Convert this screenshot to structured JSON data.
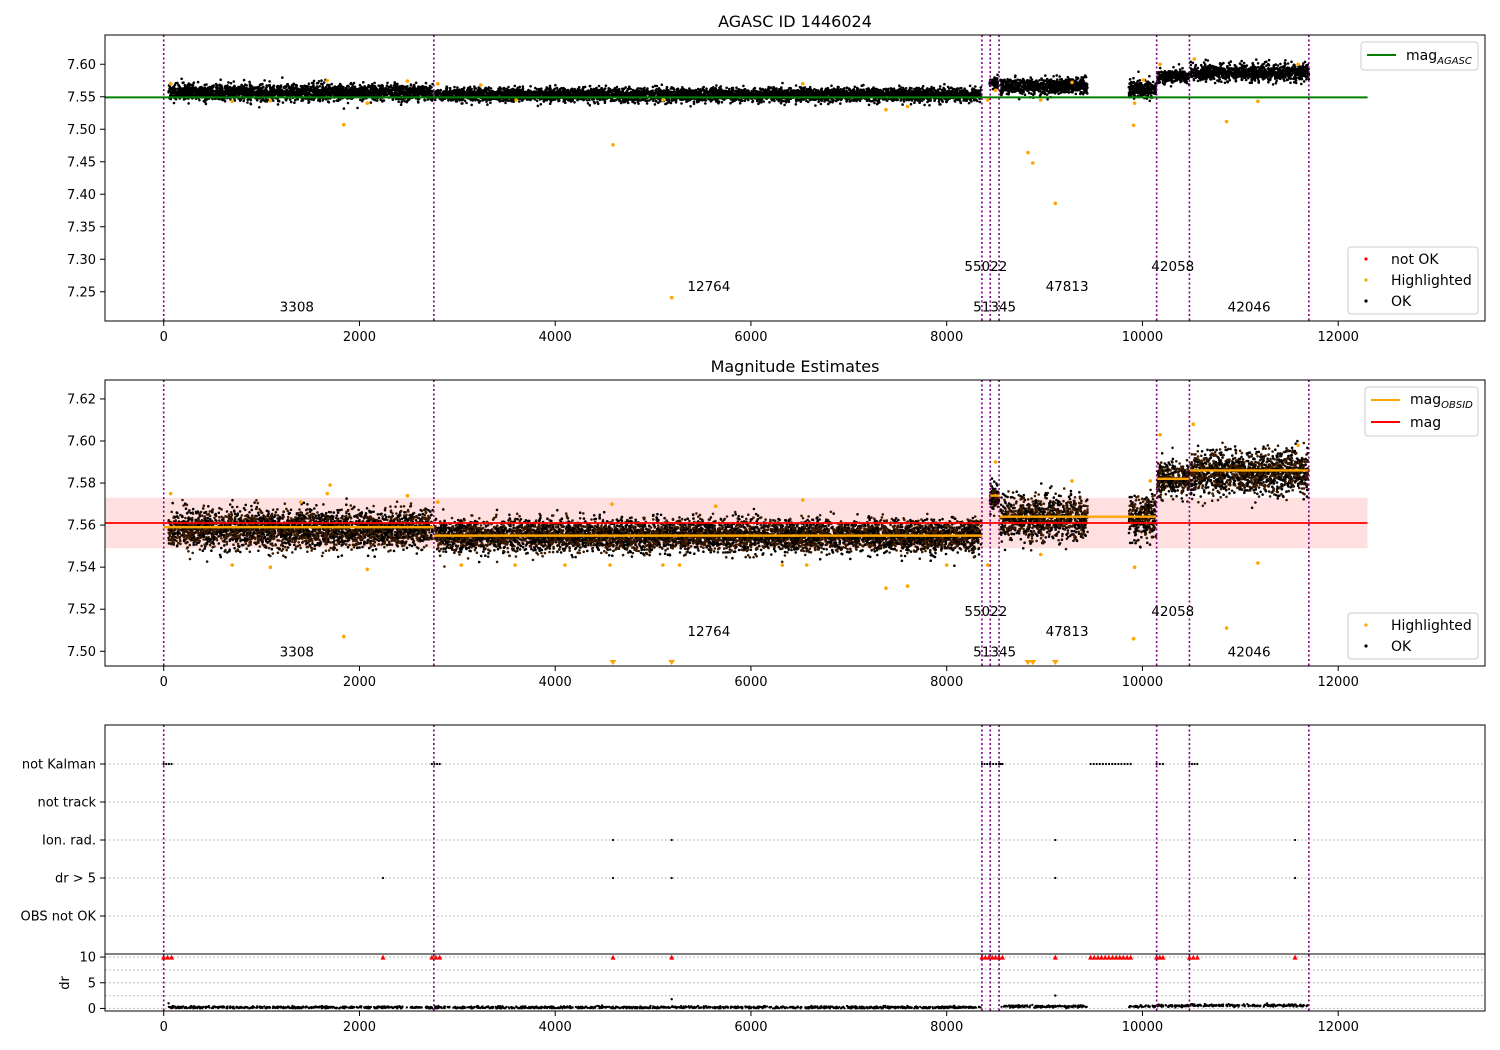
{
  "chart_data": [
    {
      "type": "scatter",
      "title": "AGASC ID 1446024",
      "xlim": [
        -600,
        13500
      ],
      "ylim": [
        7.205,
        7.645
      ],
      "xticks": [
        0,
        2000,
        4000,
        6000,
        8000,
        10000,
        12000
      ],
      "yticks": [
        7.25,
        7.3,
        7.35,
        7.4,
        7.45,
        7.5,
        7.55,
        7.6
      ],
      "ytick_labels": [
        "7.25",
        "7.30",
        "7.35",
        "7.40",
        "7.45",
        "7.50",
        "7.55",
        "7.60"
      ],
      "grid": false,
      "reference_lines": [
        {
          "name": "mag_AGASC",
          "label_main": "mag",
          "label_sub": "AGASC",
          "y": 7.549,
          "x": [
            -600,
            12300
          ],
          "color": "#008000"
        }
      ],
      "obsid_boundaries": [
        0,
        2760,
        8360,
        8445,
        8535,
        10145,
        10480,
        11700
      ],
      "obsid_labels": [
        {
          "text": "3308",
          "x": 1360,
          "y": 7.22
        },
        {
          "text": "12764",
          "x": 5570,
          "y": 7.251
        },
        {
          "text": "55022",
          "x": 8400,
          "y": 7.282
        },
        {
          "text": "51345",
          "x": 8490,
          "y": 7.22
        },
        {
          "text": "47813",
          "x": 9230,
          "y": 7.251
        },
        {
          "text": "42058",
          "x": 10310,
          "y": 7.282
        },
        {
          "text": "42046",
          "x": 11090,
          "y": 7.22
        }
      ],
      "bands": [
        {
          "x0": 50,
          "x1": 2750,
          "mean": 7.557,
          "spread": 0.006
        },
        {
          "x0": 2770,
          "x1": 8350,
          "mean": 7.553,
          "spread": 0.005
        },
        {
          "x0": 8440,
          "x1": 8535,
          "mean": 7.572,
          "spread": 0.004
        },
        {
          "x0": 8550,
          "x1": 9440,
          "mean": 7.566,
          "spread": 0.006
        },
        {
          "x0": 9860,
          "x1": 10140,
          "mean": 7.562,
          "spread": 0.007
        },
        {
          "x0": 10150,
          "x1": 10480,
          "mean": 7.581,
          "spread": 0.005
        },
        {
          "x0": 10490,
          "x1": 11700,
          "mean": 7.587,
          "spread": 0.006
        }
      ],
      "series": [
        {
          "name": "not OK",
          "color": "#ff0000",
          "points": []
        },
        {
          "name": "Highlighted",
          "color": "#ffa500",
          "points": [
            [
              70,
              7.57
            ],
            [
              700,
              7.543
            ],
            [
              1090,
              7.544
            ],
            [
              1670,
              7.575
            ],
            [
              1840,
              7.507
            ],
            [
              2080,
              7.54
            ],
            [
              2490,
              7.574
            ],
            [
              2800,
              7.57
            ],
            [
              3240,
              7.568
            ],
            [
              3600,
              7.545
            ],
            [
              4590,
              7.476
            ],
            [
              5190,
              7.241
            ],
            [
              5100,
              7.545
            ],
            [
              6530,
              7.57
            ],
            [
              7380,
              7.53
            ],
            [
              7600,
              7.535
            ],
            [
              8420,
              7.545
            ],
            [
              8500,
              7.56
            ],
            [
              8830,
              7.464
            ],
            [
              8880,
              7.448
            ],
            [
              8960,
              7.545
            ],
            [
              9110,
              7.386
            ],
            [
              9280,
              7.572
            ],
            [
              9910,
              7.506
            ],
            [
              9920,
              7.54
            ],
            [
              10010,
              7.576
            ],
            [
              10180,
              7.6
            ],
            [
              10530,
              7.608
            ],
            [
              10860,
              7.512
            ],
            [
              11180,
              7.543
            ],
            [
              11590,
              7.6
            ]
          ]
        },
        {
          "name": "OK",
          "color": "#000000",
          "points": []
        }
      ],
      "legends": [
        {
          "placement": "top-right",
          "entries": [
            "mag_AGASC"
          ]
        },
        {
          "placement": "lower-right",
          "entries": [
            "not OK",
            "Highlighted",
            "OK"
          ]
        }
      ]
    },
    {
      "type": "scatter",
      "title": "Magnitude Estimates",
      "xlim": [
        -600,
        13500
      ],
      "ylim": [
        7.493,
        7.629
      ],
      "xticks": [
        0,
        2000,
        4000,
        6000,
        8000,
        10000,
        12000
      ],
      "yticks": [
        7.5,
        7.52,
        7.54,
        7.56,
        7.58,
        7.6,
        7.62
      ],
      "ytick_labels": [
        "7.50",
        "7.52",
        "7.54",
        "7.56",
        "7.58",
        "7.60",
        "7.62"
      ],
      "grid": false,
      "reference_lines": [
        {
          "name": "mag",
          "y": 7.561,
          "x": [
            -600,
            12300
          ],
          "color": "#ff0000",
          "band": [
            7.549,
            7.573
          ]
        }
      ],
      "obsid_mag_segments": [
        {
          "x0": 0,
          "x1": 2760,
          "y": 7.559
        },
        {
          "x0": 2760,
          "x1": 8360,
          "y": 7.555
        },
        {
          "x0": 8445,
          "x1": 8535,
          "y": 7.574
        },
        {
          "x0": 8535,
          "x1": 10145,
          "y": 7.564
        },
        {
          "x0": 10145,
          "x1": 10480,
          "y": 7.582
        },
        {
          "x0": 10480,
          "x1": 11700,
          "y": 7.586
        }
      ],
      "obsid_boundaries": [
        0,
        2760,
        8360,
        8445,
        8535,
        10145,
        10480,
        11700
      ],
      "obsid_labels": [
        {
          "text": "3308",
          "x": 1360,
          "y": 7.4975
        },
        {
          "text": "12764",
          "x": 5570,
          "y": 7.5072
        },
        {
          "text": "55022",
          "x": 8400,
          "y": 7.5168
        },
        {
          "text": "51345",
          "x": 8490,
          "y": 7.4975
        },
        {
          "text": "47813",
          "x": 9230,
          "y": 7.5072
        },
        {
          "text": "42058",
          "x": 10310,
          "y": 7.5168
        },
        {
          "text": "42046",
          "x": 11090,
          "y": 7.4975
        }
      ],
      "bands": [
        {
          "x0": 50,
          "x1": 2750,
          "mean": 7.558,
          "spread": 0.0045
        },
        {
          "x0": 2770,
          "x1": 8350,
          "mean": 7.555,
          "spread": 0.0038
        },
        {
          "x0": 8440,
          "x1": 8535,
          "mean": 7.573,
          "spread": 0.003
        },
        {
          "x0": 8550,
          "x1": 9440,
          "mean": 7.563,
          "spread": 0.005
        },
        {
          "x0": 9860,
          "x1": 10140,
          "mean": 7.563,
          "spread": 0.005
        },
        {
          "x0": 10150,
          "x1": 10480,
          "mean": 7.582,
          "spread": 0.004
        },
        {
          "x0": 10490,
          "x1": 11700,
          "mean": 7.585,
          "spread": 0.005
        }
      ],
      "series": [
        {
          "name": "Highlighted",
          "color": "#ffa500",
          "points": [
            [
              70,
              7.575
            ],
            [
              700,
              7.541
            ],
            [
              1090,
              7.54
            ],
            [
              1400,
              7.571
            ],
            [
              1670,
              7.575
            ],
            [
              1700,
              7.579
            ],
            [
              1840,
              7.507
            ],
            [
              2080,
              7.539
            ],
            [
              2490,
              7.574
            ],
            [
              2800,
              7.571
            ],
            [
              3040,
              7.541
            ],
            [
              3590,
              7.541
            ],
            [
              4100,
              7.541
            ],
            [
              4580,
              7.57
            ],
            [
              4560,
              7.541
            ],
            [
              5100,
              7.541
            ],
            [
              5270,
              7.541
            ],
            [
              5640,
              7.569
            ],
            [
              6530,
              7.572
            ],
            [
              6320,
              7.541
            ],
            [
              6570,
              7.541
            ],
            [
              7380,
              7.53
            ],
            [
              7600,
              7.531
            ],
            [
              8000,
              7.541
            ],
            [
              8420,
              7.541
            ],
            [
              8500,
              7.59
            ],
            [
              8960,
              7.546
            ],
            [
              9280,
              7.581
            ],
            [
              9910,
              7.506
            ],
            [
              9920,
              7.54
            ],
            [
              10080,
              7.581
            ],
            [
              10180,
              7.603
            ],
            [
              10520,
              7.608
            ],
            [
              10860,
              7.511
            ],
            [
              11180,
              7.542
            ],
            [
              11590,
              7.598
            ]
          ]
        },
        {
          "name": "OK",
          "color": "#000000",
          "points": []
        }
      ],
      "off_scale_markers": [
        4590,
        5190,
        8830,
        8880,
        9110
      ],
      "legends": [
        {
          "placement": "top-right",
          "entries": [
            "mag_OBSID",
            "mag"
          ]
        },
        {
          "placement": "lower-right",
          "entries": [
            "Highlighted",
            "OK"
          ]
        }
      ],
      "legend_labels": {
        "mag_OBSID": {
          "main": "mag",
          "sub": "OBSID"
        },
        "mag": {
          "main": "mag"
        }
      }
    },
    {
      "type": "scatter",
      "title": "",
      "xlim": [
        -600,
        13500
      ],
      "xticks": [
        0,
        2000,
        4000,
        6000,
        8000,
        10000,
        12000
      ],
      "categories": [
        "not Kalman",
        "not track",
        "Ion. rad.",
        "dr > 5",
        "OBS not OK"
      ],
      "obsid_boundaries": [
        0,
        2760,
        8360,
        8445,
        8535,
        10145,
        10480,
        11700
      ],
      "flag_points": {
        "not Kalman": [
          [
            0,
            80
          ],
          [
            2740,
            2820
          ],
          [
            8360,
            8440
          ],
          [
            8445,
            8535
          ],
          [
            8535,
            8570
          ],
          [
            9470,
            9880
          ],
          [
            10145,
            10210
          ],
          [
            10480,
            10560
          ]
        ],
        "not track": [],
        "Ion. rad.": [
          [
            4590,
            4590
          ],
          [
            5190,
            5190
          ],
          [
            9110,
            9110
          ],
          [
            11560,
            11560
          ]
        ],
        "dr > 5": [
          [
            2240,
            2240
          ],
          [
            4590,
            4590
          ],
          [
            5190,
            5190
          ],
          [
            9110,
            9110
          ],
          [
            11560,
            11560
          ]
        ],
        "OBS not OK": []
      }
    },
    {
      "type": "scatter",
      "title": "",
      "ylabel": "dr",
      "xlim": [
        -600,
        13500
      ],
      "ylim": [
        -0.5,
        10.6
      ],
      "xticks": [
        0,
        2000,
        4000,
        6000,
        8000,
        10000,
        12000
      ],
      "yticks": [
        0,
        5,
        10
      ],
      "ytick_labels": [
        "0",
        "5",
        "10"
      ],
      "capped_markers": {
        "y": 10,
        "color": "#ff0000",
        "ranges": [
          [
            0,
            80
          ],
          [
            2240,
            2240
          ],
          [
            2740,
            2820
          ],
          [
            4590,
            4590
          ],
          [
            5190,
            5190
          ],
          [
            8360,
            8570
          ],
          [
            9110,
            9110
          ],
          [
            9470,
            9880
          ],
          [
            10145,
            10210
          ],
          [
            10480,
            10560
          ],
          [
            11560,
            11560
          ]
        ]
      },
      "dr_segments": [
        {
          "x0": 50,
          "x1": 2750,
          "level": 0.2
        },
        {
          "x0": 2770,
          "x1": 8350,
          "level": 0.2
        },
        {
          "x0": 8550,
          "x1": 9440,
          "level": 0.4
        },
        {
          "x0": 9860,
          "x1": 10140,
          "level": 0.4
        },
        {
          "x0": 10150,
          "x1": 10480,
          "level": 0.5
        },
        {
          "x0": 10490,
          "x1": 11700,
          "level": 0.6
        }
      ],
      "dr_points": [
        [
          50,
          1.0
        ],
        [
          5190,
          1.8
        ],
        [
          9110,
          2.5
        ]
      ]
    }
  ]
}
